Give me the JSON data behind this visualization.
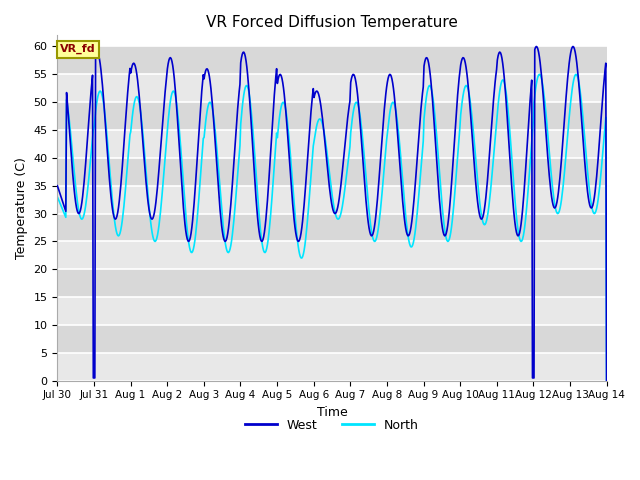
{
  "title": "VR Forced Diffusion Temperature",
  "xlabel": "Time",
  "ylabel": "Temperature (C)",
  "ylim": [
    0,
    62
  ],
  "yticks": [
    0,
    5,
    10,
    15,
    20,
    25,
    30,
    35,
    40,
    45,
    50,
    55,
    60
  ],
  "bg_color": "#ffffff",
  "west_color": "#0000cc",
  "north_color": "#00e5ff",
  "west_label": "West",
  "north_label": "North",
  "annotation_text": "VR_fd",
  "annotation_bg": "#ffff99",
  "annotation_border": "#999900",
  "annotation_text_color": "#8b0000",
  "x_tick_labels": [
    "Jul 30",
    "Jul 31",
    "Aug 1",
    "Aug 2",
    "Aug 3",
    "Aug 4",
    "Aug 5",
    "Aug 6",
    "Aug 7",
    "Aug 8",
    "Aug 9",
    "Aug 10",
    "Aug 11",
    "Aug 12",
    "Aug 13",
    "Aug 14"
  ],
  "band_colors": [
    "#e8e8e8",
    "#d8d8d8"
  ],
  "spike1_day": 1,
  "spike2_day": 13,
  "total_days": 15
}
